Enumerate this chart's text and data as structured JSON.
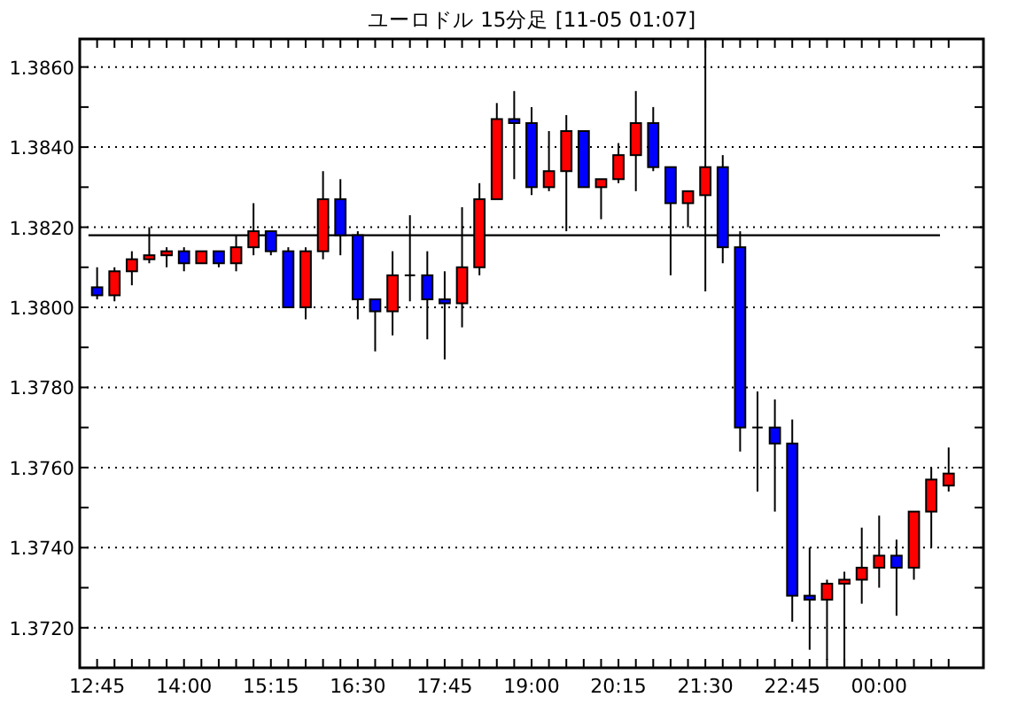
{
  "chart_data": {
    "type": "candlestick",
    "title": "ユーロドル 15分足 [11-05 01:07]",
    "x": [
      12.75,
      13,
      13.25,
      13.5,
      13.75,
      14,
      14.25,
      14.5,
      14.75,
      15,
      15.25,
      15.5,
      15.75,
      16,
      16.25,
      16.5,
      16.75,
      17,
      17.25,
      17.5,
      17.75,
      18,
      18.25,
      18.5,
      18.75,
      19,
      19.25,
      19.5,
      19.75,
      20,
      20.25,
      20.5,
      20.75,
      21,
      21.25,
      21.5,
      21.75,
      22,
      22.25,
      22.5,
      22.75,
      23,
      23.25,
      23.5,
      23.75,
      24,
      24.25,
      24.5,
      24.75,
      25
    ],
    "ohlc": [
      [
        1.3805,
        1.381,
        1.3802,
        1.3803
      ],
      [
        1.3803,
        1.381,
        1.38015,
        1.3809
      ],
      [
        1.3809,
        1.3814,
        1.38055,
        1.3812
      ],
      [
        1.3812,
        1.382,
        1.3811,
        1.3813
      ],
      [
        1.3813,
        1.3815,
        1.381,
        1.3814
      ],
      [
        1.3814,
        1.3815,
        1.3809,
        1.3811
      ],
      [
        1.3811,
        1.3814,
        1.3811,
        1.3814
      ],
      [
        1.3814,
        1.3814,
        1.381,
        1.3811
      ],
      [
        1.3811,
        1.3818,
        1.3809,
        1.3815
      ],
      [
        1.3815,
        1.3826,
        1.3813,
        1.3819
      ],
      [
        1.3819,
        1.3819,
        1.3813,
        1.3814
      ],
      [
        1.3814,
        1.3815,
        1.38,
        1.38
      ],
      [
        1.38,
        1.3815,
        1.3797,
        1.3814
      ],
      [
        1.3814,
        1.3834,
        1.3812,
        1.3827
      ],
      [
        1.3827,
        1.3832,
        1.3813,
        1.3818
      ],
      [
        1.3818,
        1.3819,
        1.3797,
        1.3802
      ],
      [
        1.3802,
        1.3802,
        1.3789,
        1.3799
      ],
      [
        1.3799,
        1.3814,
        1.3793,
        1.3808
      ],
      [
        1.3808,
        1.3823,
        1.38015,
        1.3808
      ],
      [
        1.3808,
        1.3814,
        1.3792,
        1.3802
      ],
      [
        1.3802,
        1.3809,
        1.3787,
        1.3801
      ],
      [
        1.3801,
        1.3825,
        1.3795,
        1.381
      ],
      [
        1.381,
        1.3831,
        1.3808,
        1.3827
      ],
      [
        1.3827,
        1.3851,
        1.3827,
        1.3847
      ],
      [
        1.3847,
        1.3854,
        1.3832,
        1.3846
      ],
      [
        1.3846,
        1.385,
        1.3828,
        1.383
      ],
      [
        1.383,
        1.3844,
        1.3829,
        1.3834
      ],
      [
        1.3834,
        1.3848,
        1.3819,
        1.3844
      ],
      [
        1.3844,
        1.3844,
        1.383,
        1.383
      ],
      [
        1.383,
        1.3832,
        1.3822,
        1.3832
      ],
      [
        1.3832,
        1.3841,
        1.3831,
        1.3838
      ],
      [
        1.3838,
        1.3854,
        1.3829,
        1.3846
      ],
      [
        1.3846,
        1.385,
        1.3834,
        1.3835
      ],
      [
        1.3835,
        1.3835,
        1.3808,
        1.3826
      ],
      [
        1.3826,
        1.3829,
        1.382,
        1.3829
      ],
      [
        1.3828,
        1.3867,
        1.3804,
        1.3835
      ],
      [
        1.3835,
        1.3838,
        1.3811,
        1.3815
      ],
      [
        1.3815,
        1.3819,
        1.3764,
        1.377
      ],
      [
        1.377,
        1.3779,
        1.3754,
        1.377
      ],
      [
        1.377,
        1.3777,
        1.3749,
        1.3766
      ],
      [
        1.3766,
        1.3772,
        1.37215,
        1.3728
      ],
      [
        1.3728,
        1.374,
        1.37145,
        1.3727
      ],
      [
        1.3727,
        1.3732,
        1.3712,
        1.3731
      ],
      [
        1.3731,
        1.3734,
        1.37105,
        1.3732
      ],
      [
        1.3732,
        1.3745,
        1.3726,
        1.3735
      ],
      [
        1.3735,
        1.3748,
        1.373,
        1.3738
      ],
      [
        1.3738,
        1.3742,
        1.3723,
        1.3735
      ],
      [
        1.3735,
        1.3749,
        1.3732,
        1.3749
      ],
      [
        1.3749,
        1.376,
        1.374,
        1.3757
      ],
      [
        1.37555,
        1.3765,
        1.3754,
        1.37585
      ]
    ],
    "colors": [
      "#0000ff",
      "#ff0000",
      "#ff0000",
      "#ff0000",
      "#ff0000",
      "#0000ff",
      "#ff0000",
      "#0000ff",
      "#ff0000",
      "#ff0000",
      "#0000ff",
      "#0000ff",
      "#ff0000",
      "#ff0000",
      "#0000ff",
      "#0000ff",
      "#0000ff",
      "#ff0000",
      "#000000",
      "#0000ff",
      "#0000ff",
      "#ff0000",
      "#ff0000",
      "#ff0000",
      "#0000ff",
      "#0000ff",
      "#ff0000",
      "#ff0000",
      "#0000ff",
      "#ff0000",
      "#ff0000",
      "#ff0000",
      "#0000ff",
      "#0000ff",
      "#ff0000",
      "#ff0000",
      "#0000ff",
      "#0000ff",
      "#000000",
      "#0000ff",
      "#0000ff",
      "#0000ff",
      "#ff0000",
      "#ff0000",
      "#ff0000",
      "#ff0000",
      "#0000ff",
      "#ff0000",
      "#ff0000",
      "#ff0000"
    ],
    "xlim": [
      12.5,
      25.5
    ],
    "xticks": [
      {
        "value": 12.75,
        "label": "12:45"
      },
      {
        "value": 13,
        "label": null
      },
      {
        "value": 13.25,
        "label": null
      },
      {
        "value": 13.5,
        "label": null
      },
      {
        "value": 13.75,
        "label": null
      },
      {
        "value": 14,
        "label": "14:00"
      },
      {
        "value": 14.25,
        "label": null
      },
      {
        "value": 14.5,
        "label": null
      },
      {
        "value": 14.75,
        "label": null
      },
      {
        "value": 15,
        "label": null
      },
      {
        "value": 15.25,
        "label": "15:15"
      },
      {
        "value": 15.5,
        "label": null
      },
      {
        "value": 15.75,
        "label": null
      },
      {
        "value": 16,
        "label": null
      },
      {
        "value": 16.25,
        "label": null
      },
      {
        "value": 16.5,
        "label": "16:30"
      },
      {
        "value": 16.75,
        "label": null
      },
      {
        "value": 17,
        "label": null
      },
      {
        "value": 17.25,
        "label": null
      },
      {
        "value": 17.5,
        "label": null
      },
      {
        "value": 17.75,
        "label": "17:45"
      },
      {
        "value": 18,
        "label": null
      },
      {
        "value": 18.25,
        "label": null
      },
      {
        "value": 18.5,
        "label": null
      },
      {
        "value": 18.75,
        "label": null
      },
      {
        "value": 19,
        "label": "19:00"
      },
      {
        "value": 19.25,
        "label": null
      },
      {
        "value": 19.5,
        "label": null
      },
      {
        "value": 19.75,
        "label": null
      },
      {
        "value": 20,
        "label": null
      },
      {
        "value": 20.25,
        "label": "20:15"
      },
      {
        "value": 20.5,
        "label": null
      },
      {
        "value": 20.75,
        "label": null
      },
      {
        "value": 21,
        "label": null
      },
      {
        "value": 21.25,
        "label": null
      },
      {
        "value": 21.5,
        "label": "21:30"
      },
      {
        "value": 21.75,
        "label": null
      },
      {
        "value": 22,
        "label": null
      },
      {
        "value": 22.25,
        "label": null
      },
      {
        "value": 22.5,
        "label": null
      },
      {
        "value": 22.75,
        "label": "22:45"
      },
      {
        "value": 23,
        "label": null
      },
      {
        "value": 23.25,
        "label": null
      },
      {
        "value": 23.5,
        "label": null
      },
      {
        "value": 23.75,
        "label": null
      },
      {
        "value": 24,
        "label": "00:00"
      },
      {
        "value": 24.25,
        "label": null
      },
      {
        "value": 24.5,
        "label": null
      },
      {
        "value": 24.75,
        "label": null
      },
      {
        "value": 25,
        "label": null
      }
    ],
    "ylim": [
      1.371,
      1.3867
    ],
    "yticks": [
      {
        "value": 1.372,
        "label": "1.3720"
      },
      {
        "value": 1.373,
        "label": null
      },
      {
        "value": 1.374,
        "label": "1.3740"
      },
      {
        "value": 1.375,
        "label": null
      },
      {
        "value": 1.376,
        "label": "1.3760"
      },
      {
        "value": 1.377,
        "label": null
      },
      {
        "value": 1.378,
        "label": "1.3780"
      },
      {
        "value": 1.379,
        "label": null
      },
      {
        "value": 1.38,
        "label": "1.3800"
      },
      {
        "value": 1.381,
        "label": null
      },
      {
        "value": 1.382,
        "label": "1.3820"
      },
      {
        "value": 1.383,
        "label": null
      },
      {
        "value": 1.384,
        "label": "1.3840"
      },
      {
        "value": 1.385,
        "label": null
      },
      {
        "value": 1.386,
        "label": "1.3860"
      }
    ],
    "grid": "y",
    "ref_lines": [
      {
        "axis": "y",
        "value": 1.3818,
        "color": "#000000"
      }
    ]
  }
}
